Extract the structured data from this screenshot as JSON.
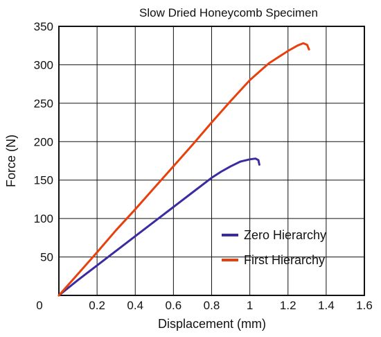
{
  "chart_data": {
    "type": "line",
    "title": "Slow Dried Honeycomb Specimen",
    "xlabel": "Displacement (mm)",
    "ylabel": "Force (N)",
    "xlim": [
      0,
      1.6
    ],
    "ylim": [
      0,
      350
    ],
    "xticks": [
      "0",
      "0.2",
      "0.4",
      "0.6",
      "0.8",
      "1",
      "1.2",
      "1.4",
      "1.6"
    ],
    "yticks": [
      "50",
      "100",
      "150",
      "200",
      "250",
      "300",
      "350"
    ],
    "grid": true,
    "legend": "bottom-right",
    "series": [
      {
        "name": "Zero Hierarchy",
        "color": "#3a2ca0",
        "x": [
          0,
          0.1,
          0.2,
          0.3,
          0.4,
          0.5,
          0.6,
          0.7,
          0.8,
          0.85,
          0.9,
          0.95,
          1.0,
          1.03,
          1.045,
          1.05
        ],
        "y": [
          0,
          20,
          39,
          58,
          77,
          96,
          115,
          134,
          153,
          161,
          168,
          174,
          177,
          178,
          176,
          170
        ]
      },
      {
        "name": "First Hierarchy",
        "color": "#e8400c",
        "x": [
          0,
          0.1,
          0.2,
          0.3,
          0.4,
          0.5,
          0.6,
          0.7,
          0.8,
          0.9,
          1.0,
          1.1,
          1.2,
          1.25,
          1.28,
          1.3,
          1.31
        ],
        "y": [
          0,
          28,
          56,
          85,
          112,
          140,
          168,
          196,
          225,
          253,
          280,
          302,
          318,
          325,
          328,
          326,
          320
        ]
      }
    ]
  }
}
